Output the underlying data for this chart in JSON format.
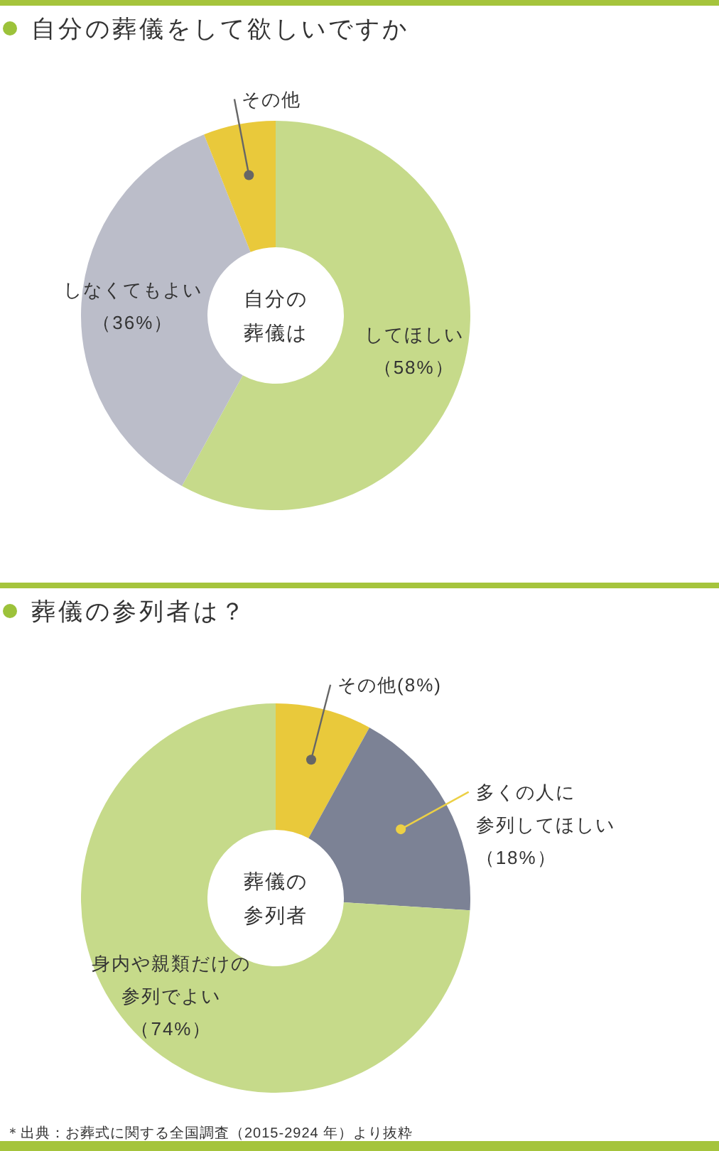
{
  "chart_data": [
    {
      "type": "donut",
      "title": "自分の葬儀をして欲しいですか",
      "categories": [
        "してほしい",
        "しなくてもよい",
        "その他"
      ],
      "values": [
        58,
        36,
        6
      ],
      "colors": [
        "#c6da8a",
        "#bbbdc9",
        "#e9c93b"
      ],
      "value_labels": [
        "（58%）",
        "（36%）",
        null
      ],
      "annotations": [
        "自分の葬儀は"
      ]
    },
    {
      "type": "donut",
      "title": "葬儀の参列者は？",
      "categories": [
        "その他",
        "多くの人に参列してほしい",
        "身内や親類だけの参列でよい"
      ],
      "values": [
        8,
        18,
        74
      ],
      "colors": [
        "#e9c93b",
        "#7c8295",
        "#c6da8a"
      ],
      "value_labels": [
        "(8%)",
        "（18%）",
        "（74%）"
      ],
      "annotations": [
        "葬儀の参列者",
        "＊出典：お葬式に関する全国調査（2015-2924 年）より抜粋"
      ]
    }
  ]
}
